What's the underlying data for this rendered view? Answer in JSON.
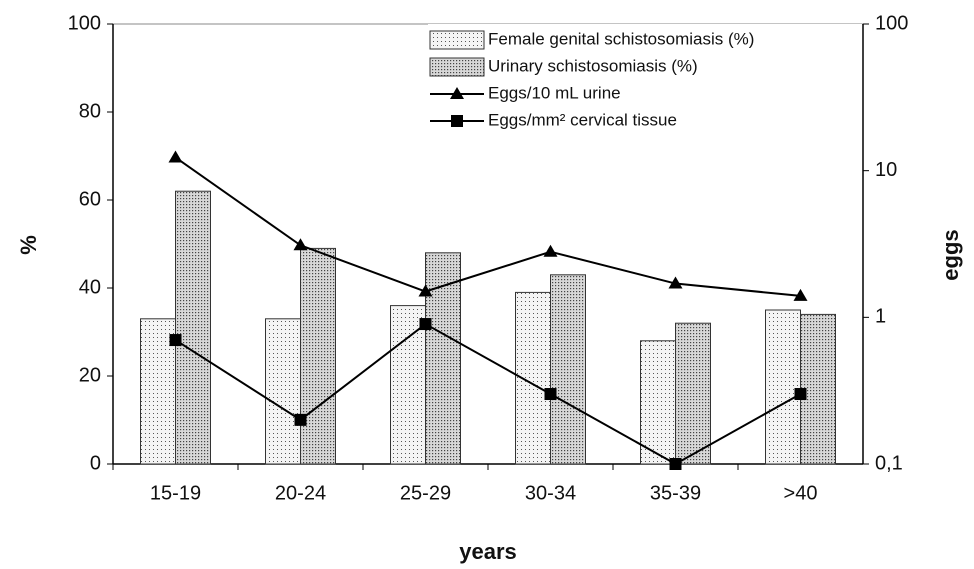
{
  "chart_data": {
    "type": "bar",
    "categories": [
      "15-19",
      "20-24",
      "25-29",
      "30-34",
      "35-39",
      ">40"
    ],
    "series": [
      {
        "name": "Female genital schistosomiasis (%)",
        "type": "bar",
        "color": "#f2f2f2",
        "values": [
          33,
          33,
          36,
          39,
          28,
          35
        ]
      },
      {
        "name": "Urinary schistosomiasis (%)",
        "type": "bar",
        "color": "#c8c8c8",
        "values": [
          62,
          49,
          48,
          43,
          32,
          34
        ]
      },
      {
        "name": "Eggs/10 mL urine",
        "type": "line",
        "axis": "y2",
        "marker": "triangle",
        "color": "#000000",
        "values": [
          12.3,
          3.1,
          1.5,
          2.8,
          1.7,
          1.4
        ]
      },
      {
        "name": "Eggs/mm² cervical tissue",
        "type": "line",
        "axis": "y2",
        "marker": "square",
        "color": "#000000",
        "values": [
          0.7,
          0.2,
          0.9,
          0.3,
          0.1,
          0.3
        ]
      }
    ],
    "ylim": [
      0,
      100
    ],
    "yticks": [
      0,
      20,
      40,
      60,
      80,
      100
    ],
    "y2lim": [
      0.1,
      100
    ],
    "y2ticks": [
      {
        "value": 0.1,
        "label": "0,1"
      },
      1,
      10,
      100
    ],
    "y2log": true,
    "ylabel": "%",
    "y2label": "eggs",
    "xlabel": "years",
    "legend": "upper right"
  }
}
